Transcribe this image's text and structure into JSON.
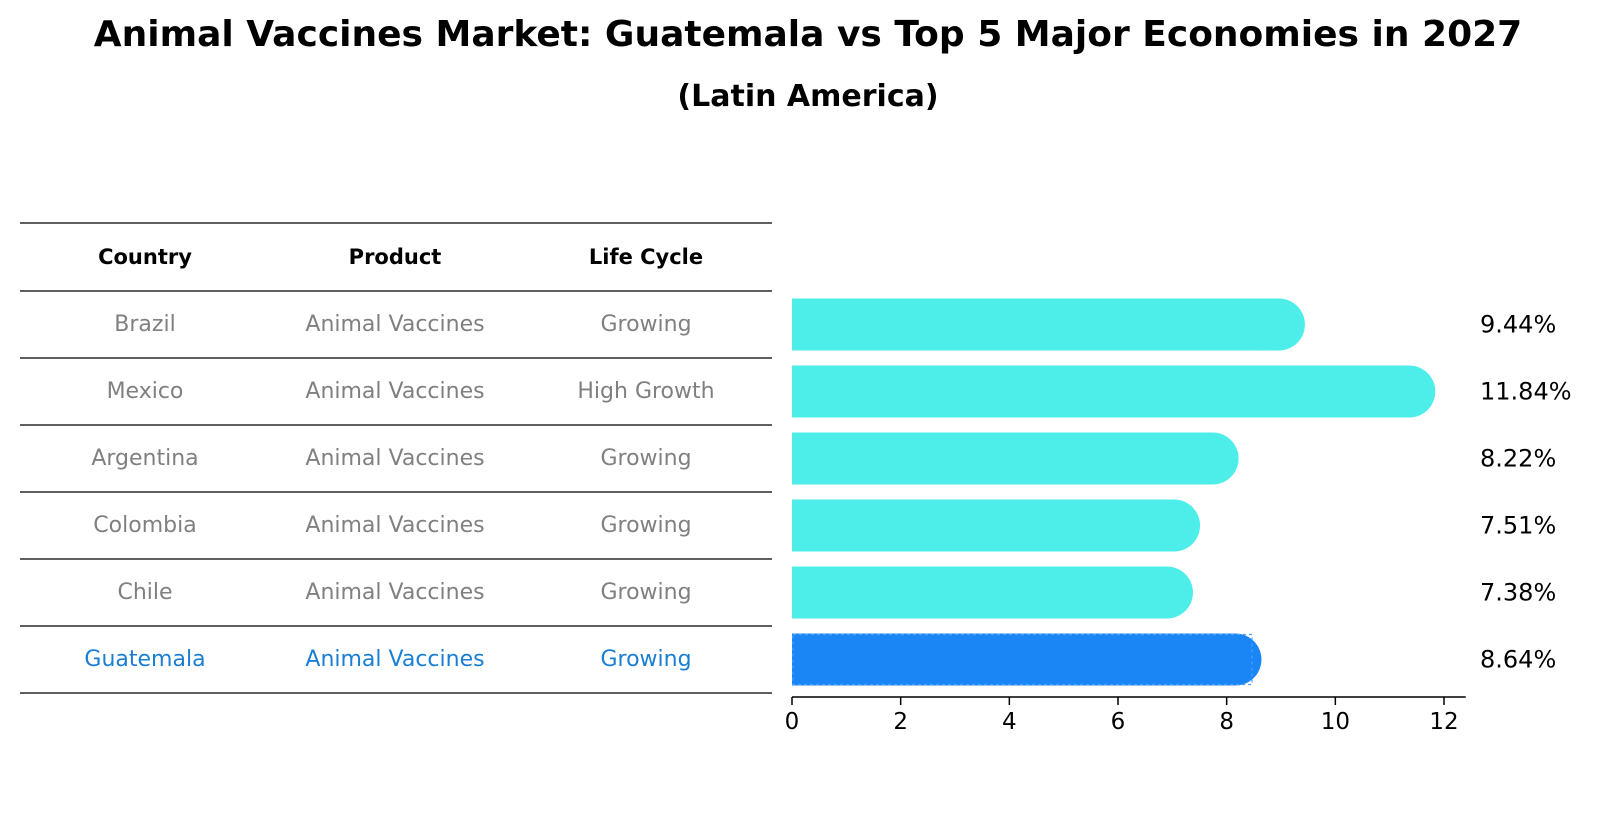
{
  "title": "Animal Vaccines Market: Guatemala vs Top 5 Major Economies in 2027",
  "subtitle": "(Latin America)",
  "table": {
    "headers": [
      "Country",
      "Product",
      "Life Cycle"
    ],
    "rows": [
      [
        "Brazil",
        "Animal Vaccines",
        "Growing"
      ],
      [
        "Mexico",
        "Animal Vaccines",
        "High Growth"
      ],
      [
        "Argentina",
        "Animal Vaccines",
        "Growing"
      ],
      [
        "Colombia",
        "Animal Vaccines",
        "Growing"
      ],
      [
        "Chile",
        "Animal Vaccines",
        "Growing"
      ],
      [
        "Guatemala",
        "Animal Vaccines",
        "Growing"
      ]
    ],
    "highlight_row": 5
  },
  "colors": {
    "bar": "#4deeea",
    "highlight_bar": "#1a85f5",
    "highlight_text": "#1a7fd4",
    "muted_text": "#808080"
  },
  "chart_data": {
    "type": "bar",
    "orientation": "horizontal",
    "categories": [
      "Brazil",
      "Mexico",
      "Argentina",
      "Colombia",
      "Chile",
      "Guatemala"
    ],
    "values": [
      9.44,
      11.84,
      8.22,
      7.51,
      7.38,
      8.64
    ],
    "labels": [
      "9.44%",
      "11.84%",
      "8.22%",
      "7.51%",
      "7.38%",
      "8.64%"
    ],
    "highlight": "Guatemala",
    "xlim": [
      0,
      12.4
    ],
    "xticks": [
      0,
      2,
      4,
      6,
      8,
      10,
      12
    ],
    "title": "Animal Vaccines Market: Guatemala vs Top 5 Major Economies in 2027",
    "xlabel": "",
    "ylabel": ""
  }
}
